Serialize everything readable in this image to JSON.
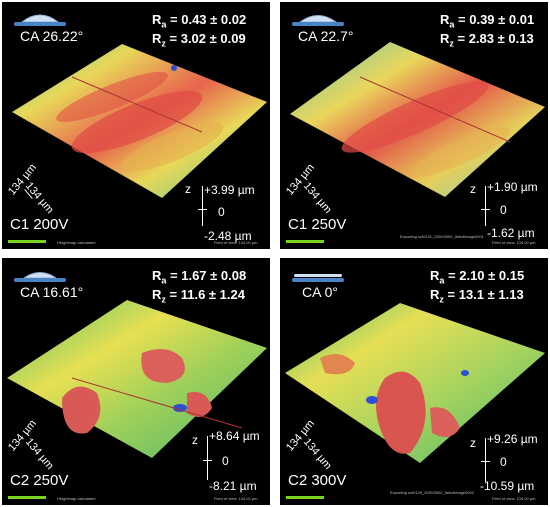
{
  "panels": [
    {
      "contact_angle": "CA 26.22°",
      "ra": "0.43 ± 0.02",
      "rz": "3.02 ± 0.09",
      "sample": "C1 200V",
      "dim_x": "134 µm",
      "dim_y": "134 µm",
      "z_label": "z",
      "z_max": "+3.99 µm",
      "z_zero": "0",
      "z_min": "-2.48 µm",
      "footer_left": "Heightmap calculated",
      "footer_right": "Field of view: 134.00 µm"
    },
    {
      "contact_angle": "CA 22.7°",
      "ra": "0.39 ± 0.01",
      "rz": "2.83 ± 0.13",
      "sample": "C1 250V",
      "dim_x": "134 µm",
      "dim_y": "134 µm",
      "z_label": "z",
      "z_max": "+1.90 µm",
      "z_zero": "0",
      "z_min": "-1.62 µm",
      "footer_left": "Exporting sct0101_250V0000_Wardimage0001",
      "footer_right": "Field of view: 134.00 µm"
    },
    {
      "contact_angle": "CA 16.61°",
      "ra": "1.67 ± 0.08",
      "rz": "11.6 ± 1.24",
      "sample": "C2 250V",
      "dim_x": "134 µm",
      "dim_y": "134 µm",
      "z_label": "z",
      "z_max": "+8.64 µm",
      "z_zero": "0",
      "z_min": "-8.21 µm",
      "footer_left": "Heightmap calculated",
      "footer_right": "Field of view: 134.02 µm"
    },
    {
      "contact_angle": "CA 0°",
      "ra": "2.10 ± 0.15",
      "rz": "13.1 ± 1.13",
      "sample": "C2 300V",
      "dim_x": "134 µm",
      "dim_y": "134 µm",
      "z_label": "z",
      "z_max": "+9.26 µm",
      "z_zero": "0",
      "z_min": "-10.59 µm",
      "footer_left": "Exporting sct0129_300V0000_Wardimage0002",
      "footer_right": "Field of view: 134.00 µm"
    }
  ],
  "labels": {
    "ra_sym": "R",
    "ra_sub": "a",
    "rz_sym": "R",
    "rz_sub": "z",
    "eq": " = "
  },
  "colors": {
    "background": "#000000",
    "text": "#ffffff",
    "high": "#e0504a",
    "mid": "#f1e35a",
    "low": "#5ec38b",
    "deep": "#2f4fd1",
    "scale_bar": "#7bd321"
  },
  "icons": [
    "contact-angle-droplet-icon"
  ]
}
